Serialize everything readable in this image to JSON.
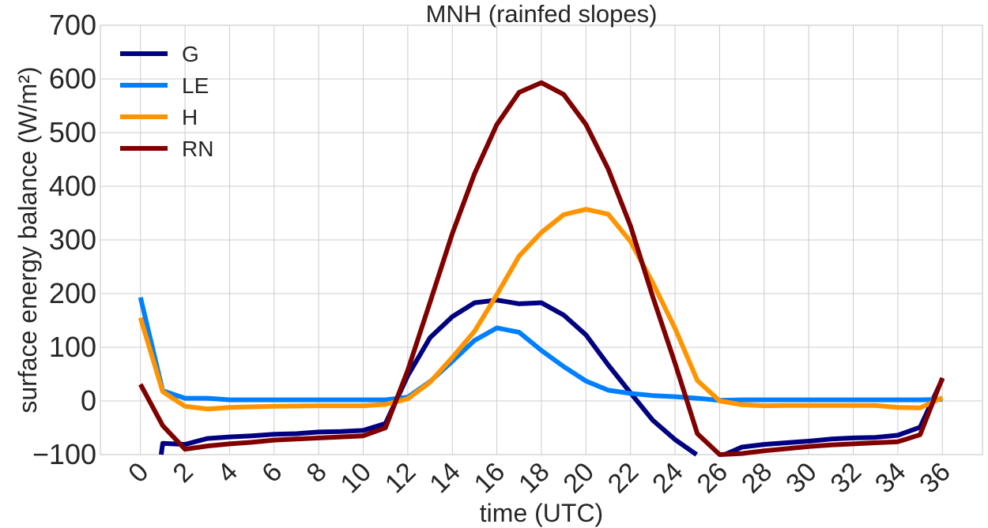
{
  "chart_data": {
    "type": "line",
    "title": "MNH (rainfed slopes)",
    "xlabel": "time (UTC)",
    "ylabel": "surface energy balance (W/m²)",
    "xlim": [
      -1.8,
      37.8
    ],
    "ylim": [
      -100,
      700
    ],
    "grid": true,
    "legend_position": "top-left",
    "xticks": [
      0,
      2,
      4,
      6,
      8,
      10,
      12,
      14,
      16,
      18,
      20,
      22,
      24,
      26,
      28,
      30,
      32,
      34,
      36
    ],
    "yticks": [
      -100,
      0,
      100,
      200,
      300,
      400,
      500,
      600,
      700
    ],
    "ytick_labels": [
      "−100",
      "0",
      "100",
      "200",
      "300",
      "400",
      "500",
      "600",
      "700"
    ],
    "x": [
      0,
      1,
      2,
      3,
      4,
      5,
      6,
      7,
      8,
      9,
      10,
      11,
      12,
      13,
      14,
      15,
      16,
      17,
      18,
      19,
      20,
      21,
      22,
      23,
      24,
      25,
      26,
      27,
      28,
      29,
      30,
      31,
      32,
      33,
      34,
      35,
      36
    ],
    "series": [
      {
        "name": "G",
        "color": "#000080",
        "values": [
          -380,
          -79,
          -81,
          -70,
          -67,
          -65,
          -62,
          -61,
          -58,
          -57,
          -55,
          -42,
          47,
          118,
          157,
          183,
          188,
          181,
          183,
          160,
          123,
          67,
          15,
          -36,
          -72,
          -101,
          -104,
          -86,
          -81,
          -78,
          -75,
          -71,
          -69,
          -68,
          -64,
          -49,
          41
        ]
      },
      {
        "name": "LE",
        "color": "#0080ff",
        "values": [
          193,
          19,
          5,
          5,
          2,
          2,
          2,
          2,
          2,
          2,
          2,
          2,
          7,
          36,
          74,
          113,
          136,
          128,
          94,
          64,
          37,
          20,
          14,
          10,
          8,
          5,
          1,
          2,
          2,
          2,
          2,
          2,
          2,
          2,
          2,
          2,
          3
        ]
      },
      {
        "name": "H",
        "color": "#ff9400",
        "values": [
          155,
          17,
          -10,
          -15,
          -12,
          -11,
          -10,
          -9.5,
          -9,
          -9,
          -9,
          -6.5,
          4,
          35,
          81,
          130,
          198,
          270,
          314,
          347,
          357,
          348,
          297,
          220,
          135,
          38,
          0,
          -7,
          -9,
          -8.5,
          -8.5,
          -8.5,
          -8.5,
          -8.5,
          -12,
          -13,
          6
        ]
      },
      {
        "name": "RN",
        "color": "#800000",
        "values": [
          31,
          -46,
          -90,
          -84,
          -80,
          -77,
          -73,
          -71,
          -69,
          -67,
          -65,
          -50,
          57,
          184,
          312,
          424,
          515,
          575,
          593,
          571,
          515,
          432,
          326,
          194,
          70,
          -61,
          -100,
          -98,
          -93,
          -89,
          -85,
          -82,
          -80,
          -78,
          -76,
          -63,
          43
        ]
      }
    ]
  }
}
